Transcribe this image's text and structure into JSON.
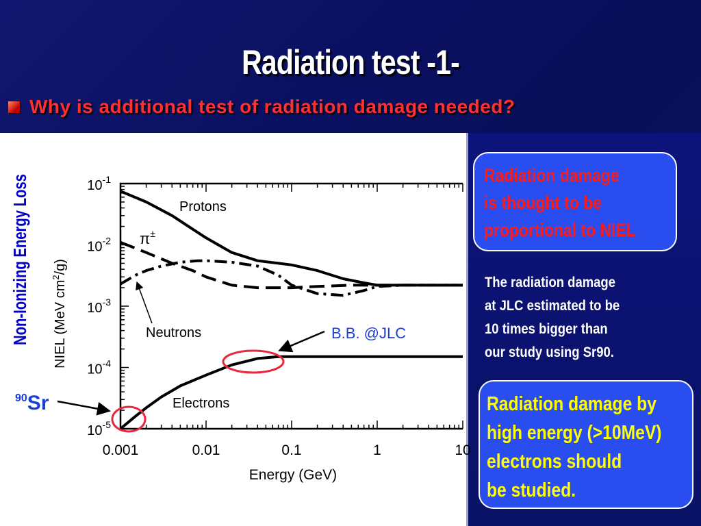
{
  "slide": {
    "title": "Radiation test -1-",
    "bullet": "Why is additional test of radiation damage needed?"
  },
  "callouts": {
    "niel_lines": [
      "Radiation damage",
      "is thought to be",
      "proportional to NIEL"
    ],
    "note_lines": [
      "The radiation damage",
      "at JLC estimated to be",
      "10 times bigger than",
      "our study using Sr90."
    ],
    "electrons_lines": [
      "Radiation damage by",
      "high energy (>10MeV)",
      "electrons should",
      "be studied."
    ]
  },
  "annotations": {
    "side_label": "Non-Ionizing Energy Loss",
    "bb_label": "B.B. @JLC",
    "sr_mass": "90",
    "sr_symbol": "Sr"
  },
  "colors": {
    "accent_red": "#ff1a1a",
    "callout_blue": "#2a4df0",
    "label_blue": "#1a3fd8",
    "highlight_ellipse": "#e8283c"
  },
  "chart_data": {
    "type": "line",
    "xlabel": "Energy (GeV)",
    "ylabel_main": "NIEL (MeV cm",
    "ylabel_sup": "2",
    "ylabel_end": "/g)",
    "xscale": "log",
    "yscale": "log",
    "xlim": [
      0.001,
      10
    ],
    "ylim": [
      1e-05,
      0.1
    ],
    "x_ticks": [
      {
        "value": 0.001,
        "label": "0.001"
      },
      {
        "value": 0.01,
        "label": "0.01"
      },
      {
        "value": 0.1,
        "label": "0.1"
      },
      {
        "value": 1,
        "label": "1"
      },
      {
        "value": 10,
        "label": "10"
      }
    ],
    "y_ticks": [
      {
        "value": 0.1,
        "base": "10",
        "exp": "-1"
      },
      {
        "value": 0.01,
        "base": "10",
        "exp": "-2"
      },
      {
        "value": 0.001,
        "base": "10",
        "exp": "-3"
      },
      {
        "value": 0.0001,
        "base": "10",
        "exp": "-4"
      },
      {
        "value": 1e-05,
        "base": "10",
        "exp": "-5"
      }
    ],
    "series": [
      {
        "name": "Protons",
        "style": "solid",
        "x": [
          0.001,
          0.002,
          0.004,
          0.007,
          0.01,
          0.02,
          0.04,
          0.07,
          0.1,
          0.2,
          0.4,
          0.7,
          1,
          2,
          5,
          10
        ],
        "y": [
          0.075,
          0.05,
          0.03,
          0.018,
          0.013,
          0.0075,
          0.0055,
          0.005,
          0.0047,
          0.0038,
          0.0028,
          0.0024,
          0.0022,
          0.0022,
          0.0022,
          0.0022
        ]
      },
      {
        "name": "π",
        "sup": "±",
        "style": "dashed",
        "x": [
          0.001,
          0.002,
          0.004,
          0.007,
          0.01,
          0.015,
          0.02,
          0.04,
          0.07,
          0.1,
          0.2,
          0.5,
          1,
          2,
          5,
          10
        ],
        "y": [
          0.011,
          0.0075,
          0.005,
          0.0038,
          0.003,
          0.0025,
          0.0022,
          0.002,
          0.002,
          0.002,
          0.0021,
          0.0022,
          0.0022,
          0.0022,
          0.0022,
          0.0022
        ]
      },
      {
        "name": "Neutrons",
        "style": "dashdot",
        "x": [
          0.001,
          0.0015,
          0.002,
          0.003,
          0.005,
          0.008,
          0.01,
          0.02,
          0.04,
          0.07,
          0.1,
          0.2,
          0.4,
          0.7,
          1,
          2,
          5,
          10
        ],
        "y": [
          0.0023,
          0.0032,
          0.0038,
          0.0045,
          0.0052,
          0.0055,
          0.0055,
          0.0052,
          0.0045,
          0.0032,
          0.0022,
          0.0016,
          0.0015,
          0.0018,
          0.0021,
          0.0022,
          0.0022,
          0.0022
        ]
      },
      {
        "name": "Electrons",
        "style": "solid",
        "x": [
          0.001,
          0.0015,
          0.002,
          0.003,
          0.005,
          0.01,
          0.02,
          0.04,
          0.07,
          0.1,
          0.3,
          1,
          3,
          10
        ],
        "y": [
          1e-05,
          1.6e-05,
          2.2e-05,
          3.3e-05,
          5e-05,
          7.5e-05,
          0.00011,
          0.00014,
          0.00015,
          0.00015,
          0.00015,
          0.00015,
          0.00015,
          0.00015
        ]
      }
    ]
  }
}
